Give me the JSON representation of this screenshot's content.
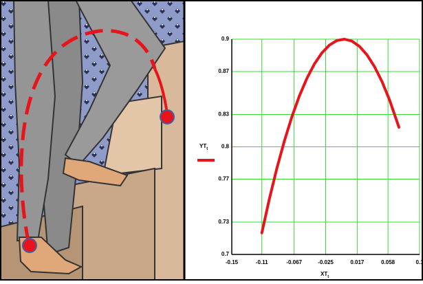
{
  "chart_data": {
    "type": "line",
    "xlabel": "XT",
    "xlabel_sub": "t",
    "ylabel": "YT",
    "ylabel_sub": "t",
    "series": [
      {
        "color": "#e8141b",
        "x": [
          -0.11,
          -0.1,
          -0.09,
          -0.08,
          -0.07,
          -0.06,
          -0.05,
          -0.04,
          -0.03,
          -0.02,
          -0.01,
          0,
          0.01,
          0.02,
          0.03,
          0.04,
          0.05,
          0.06,
          0.0725
        ],
        "values": [
          0.72,
          0.7515,
          0.78,
          0.8054,
          0.8279,
          0.8473,
          0.8636,
          0.877,
          0.8873,
          0.8945,
          0.8988,
          0.9,
          0.8982,
          0.8933,
          0.8854,
          0.8745,
          0.8606,
          0.8436,
          0.8182
        ]
      }
    ],
    "xlim": [
      -0.15,
      0.1
    ],
    "xticks": [
      -0.15,
      -0.11,
      -0.067,
      -0.025,
      0.017,
      0.058,
      0.1
    ],
    "ylim": [
      0.7,
      0.9
    ],
    "yticks": [
      0.7,
      0.73,
      0.77,
      0.8,
      0.83,
      0.87,
      0.9
    ],
    "grid": true,
    "grid_color": "#33dd33"
  }
}
